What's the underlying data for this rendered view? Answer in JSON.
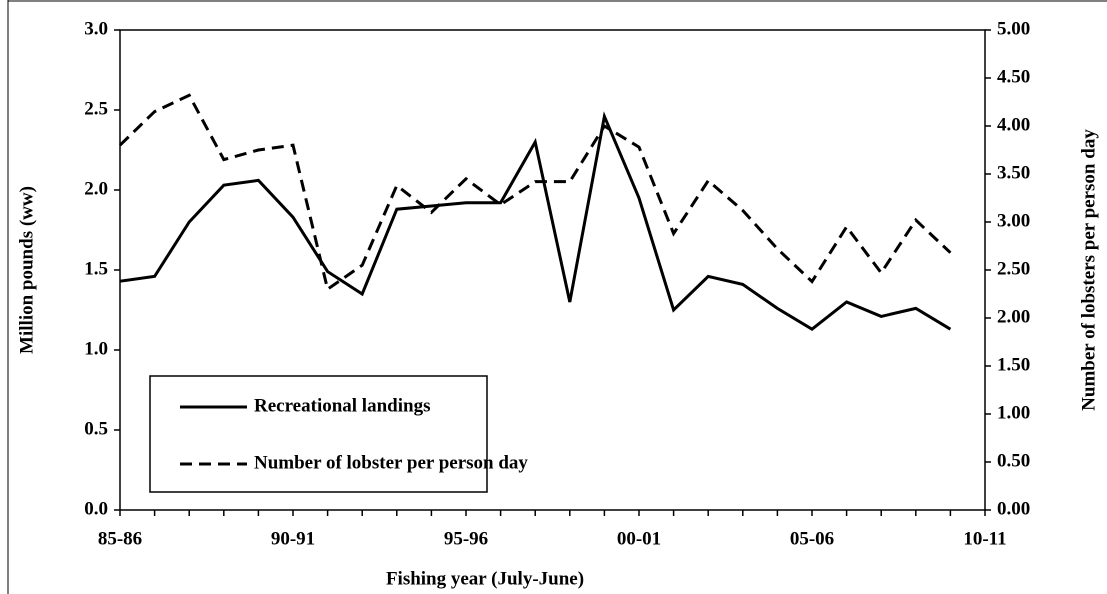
{
  "chart_data": {
    "type": "line",
    "xlabel": "Fishing year (July-June)",
    "ylabel": "Million pounds (ww)",
    "y2label": "Number of lobsters per person day",
    "categories": [
      "85-86",
      null,
      null,
      null,
      null,
      "90-91",
      null,
      null,
      null,
      null,
      "95-96",
      null,
      null,
      null,
      null,
      "00-01",
      null,
      null,
      null,
      null,
      "05-06",
      null,
      null,
      null,
      null,
      "10-11"
    ],
    "series": [
      {
        "name": "Recreational landings",
        "color": "#000000",
        "dash": "solid",
        "values": [
          1.43,
          1.46,
          1.8,
          2.03,
          2.06,
          1.83,
          1.49,
          1.35,
          1.88,
          1.9,
          1.92,
          1.92,
          2.3,
          1.3,
          2.46,
          1.95,
          1.25,
          1.46,
          1.41,
          1.26,
          1.13,
          1.3,
          1.21,
          1.26,
          1.13,
          null
        ]
      },
      {
        "name": "Number of lobster per person day",
        "color": "#000000",
        "dash": "dashed",
        "axis": "y2",
        "values": [
          3.8,
          4.15,
          4.32,
          3.65,
          3.75,
          3.8,
          2.3,
          2.55,
          3.38,
          3.1,
          3.45,
          3.18,
          3.42,
          3.42,
          4.0,
          3.78,
          2.88,
          3.43,
          3.12,
          2.72,
          2.38,
          2.95,
          2.47,
          3.02,
          2.68,
          null
        ]
      }
    ],
    "ylim": [
      0,
      3
    ],
    "yticks": [
      {
        "value": 0,
        "label": "0.0"
      },
      0.5,
      {
        "value": 1,
        "label": "1.0"
      },
      1.5,
      {
        "value": 2,
        "label": "2.0"
      },
      2.5,
      {
        "value": 3,
        "label": "3.0"
      }
    ],
    "y2lim": [
      0,
      5
    ],
    "y2ticks": [
      {
        "value": 0,
        "label": "0.00"
      },
      {
        "value": 0.5,
        "label": "0.50"
      },
      {
        "value": 1,
        "label": "1.00"
      },
      {
        "value": 1.5,
        "label": "1.50"
      },
      {
        "value": 2,
        "label": "2.00"
      },
      {
        "value": 2.5,
        "label": "2.50"
      },
      {
        "value": 3,
        "label": "3.00"
      },
      {
        "value": 3.5,
        "label": "3.50"
      },
      {
        "value": 4,
        "label": "4.00"
      },
      {
        "value": 4.5,
        "label": "4.50"
      },
      {
        "value": 5,
        "label": "5.00"
      }
    ],
    "legend": "lower left",
    "grid": false
  }
}
